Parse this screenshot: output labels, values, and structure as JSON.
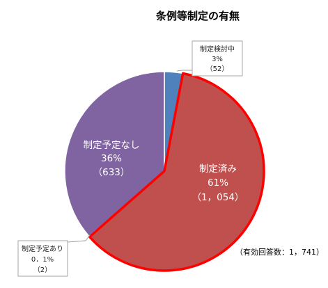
{
  "chart_data": {
    "type": "pie",
    "title": "条例等制定の有無",
    "note": "（有効回答数：1，741）",
    "slices": [
      {
        "label": "制定検討中",
        "percent_label": "3%",
        "count_label": "（52）",
        "value": 52,
        "color": "#4f81bd",
        "label_style": "callout"
      },
      {
        "label": "制定済み",
        "percent_label": "61%",
        "count_label": "（1，054）",
        "value": 1054,
        "color": "#c0504d",
        "label_style": "inside",
        "highlighted": true,
        "highlight_color": "#ff0000"
      },
      {
        "label": "制定予定あり",
        "percent_label": "0．1%",
        "count_label": "（2）",
        "value": 2,
        "color": "#9bbb59",
        "label_style": "callout"
      },
      {
        "label": "制定予定なし",
        "percent_label": "36%",
        "count_label": "（633）",
        "value": 633,
        "color": "#8064a2",
        "label_style": "inside"
      }
    ]
  }
}
